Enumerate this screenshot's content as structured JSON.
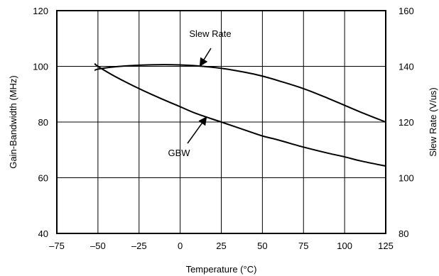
{
  "chart_data": {
    "type": "line",
    "title": "",
    "xlabel": "Temperature (°C)",
    "ylabel_left": "Gain-Bandwidth (MHz)",
    "ylabel_right": "Slew Rate (V/us)",
    "xlim": [
      -75,
      125
    ],
    "ylim_left": [
      40,
      120
    ],
    "ylim_right": [
      80,
      160
    ],
    "x_ticks": [
      "-75",
      "-50",
      "-25",
      "0",
      "25",
      "50",
      "75",
      "100",
      "125"
    ],
    "y_ticks_left": [
      "40",
      "60",
      "80",
      "100",
      "120"
    ],
    "y_ticks_right": [
      "80",
      "100",
      "120",
      "140",
      "160"
    ],
    "grid": true,
    "series": [
      {
        "name": "GBW",
        "axis": "left",
        "x": [
          -52,
          -50,
          -40,
          -25,
          -10,
          0,
          10,
          25,
          40,
          50,
          60,
          75,
          90,
          100,
          110,
          125
        ],
        "y": [
          101,
          100,
          96.5,
          92,
          88,
          85.5,
          83,
          80,
          77,
          75,
          73.5,
          71,
          68.8,
          67.5,
          66,
          64.2
        ]
      },
      {
        "name": "Slew Rate",
        "axis": "right",
        "x": [
          -52,
          -50,
          -40,
          -25,
          -10,
          0,
          10,
          25,
          40,
          50,
          60,
          75,
          90,
          100,
          110,
          125
        ],
        "y": [
          138.5,
          139,
          139.8,
          140.4,
          140.6,
          140.5,
          140.2,
          139.3,
          137.8,
          136.5,
          134.8,
          132,
          128.5,
          126,
          123.5,
          120
        ]
      }
    ],
    "annotations": [
      {
        "text": "Slew Rate",
        "series": "Slew Rate",
        "arrow_to_x": 12
      },
      {
        "text": "GBW",
        "series": "GBW",
        "arrow_to_x": 16
      }
    ]
  }
}
